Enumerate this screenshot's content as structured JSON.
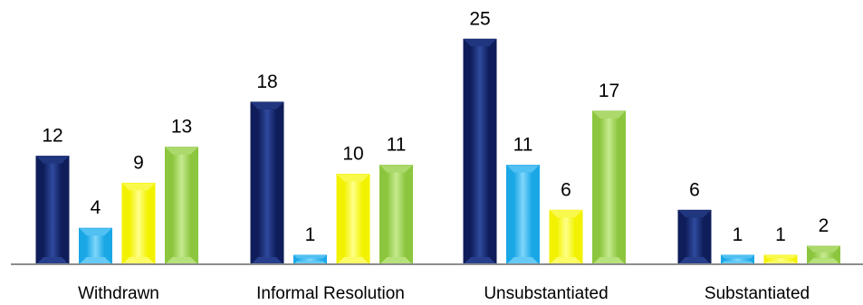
{
  "chart_data": {
    "type": "bar",
    "categories": [
      "Withdrawn",
      "Informal Resolution",
      "Unsubstantiated",
      "Substantiated"
    ],
    "series": [
      {
        "values": [
          12,
          18,
          25,
          6
        ],
        "color": "#0f1d5a",
        "highlight": "#2f4a9e"
      },
      {
        "values": [
          4,
          1,
          11,
          1
        ],
        "color": "#1aa7e6",
        "highlight": "#7fd6fb"
      },
      {
        "values": [
          9,
          10,
          6,
          1
        ],
        "color": "#f2f200",
        "highlight": "#ffff8a"
      },
      {
        "values": [
          13,
          11,
          17,
          2
        ],
        "color": "#8cc63f",
        "highlight": "#c6ea8f"
      }
    ],
    "ylim": [
      0,
      25
    ],
    "grid": false,
    "legend": "none",
    "title": "",
    "xlabel": "",
    "ylabel": ""
  }
}
